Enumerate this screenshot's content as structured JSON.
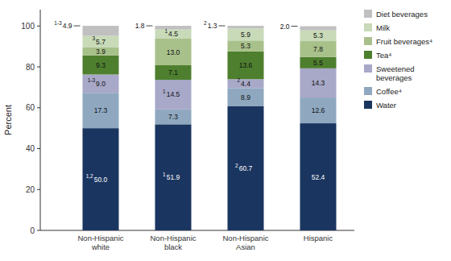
{
  "chart_data": {
    "type": "bar",
    "stacked": true,
    "data_labels": true,
    "legend": "right",
    "y_label": "Percent",
    "categories": [
      "Non-Hispanic\nwhite",
      "Non-Hispanic\nblack",
      "Non-Hispanic\nAsian",
      "Hispanic"
    ],
    "ylim": [
      0,
      108
    ],
    "yticks": [
      0,
      20,
      40,
      60,
      80,
      100
    ],
    "series": [
      {
        "name": "Water",
        "color": "#1a3560",
        "values": [
          50.0,
          51.9,
          60.7,
          52.4
        ],
        "value_labels": [
          "50.0",
          "51.9",
          "60.7",
          "52.4"
        ],
        "footnotes": [
          "1,2",
          "1",
          "2",
          null
        ]
      },
      {
        "name": "Coffee⁴",
        "color": "#8fa8c0",
        "values": [
          17.3,
          7.3,
          8.9,
          12.6
        ],
        "value_labels": [
          "17.3",
          "7.3",
          "8.9",
          "12.6"
        ]
      },
      {
        "name": "Sweetened\nbeverages",
        "color": "#a8a8c8",
        "values": [
          9.0,
          14.5,
          4.4,
          14.3
        ],
        "value_labels": [
          "9.0",
          "14.5",
          "4.4",
          "14.3"
        ],
        "footnotes": [
          "1-3",
          "1",
          "2",
          null
        ]
      },
      {
        "name": "Tea⁴",
        "color": "#4e7f2e",
        "values": [
          9.3,
          7.1,
          13.6,
          5.5
        ],
        "value_labels": [
          "9.3",
          "7.1",
          "13.6",
          "5.5"
        ]
      },
      {
        "name": "Fruit beverages⁴",
        "color": "#a8c08a",
        "values": [
          3.9,
          13.0,
          5.3,
          7.8
        ],
        "value_labels": [
          "3.9",
          "13.0",
          "5.3",
          "7.8"
        ]
      },
      {
        "name": "Milk",
        "color": "#c8dab8",
        "values": [
          5.7,
          4.5,
          5.9,
          5.3
        ],
        "value_labels": [
          "5.7",
          "4.5",
          "5.9",
          "5.3"
        ],
        "footnotes": [
          "3",
          "1",
          null,
          null
        ]
      },
      {
        "name": "Diet beverages",
        "color": "#c0c0c0",
        "values": [
          4.9,
          1.8,
          1.3,
          2.0
        ],
        "value_labels": [
          "4.9",
          "1.8",
          "1.3",
          "2.0"
        ],
        "footnotes": [
          "1-3",
          null,
          "2",
          null
        ]
      }
    ]
  }
}
